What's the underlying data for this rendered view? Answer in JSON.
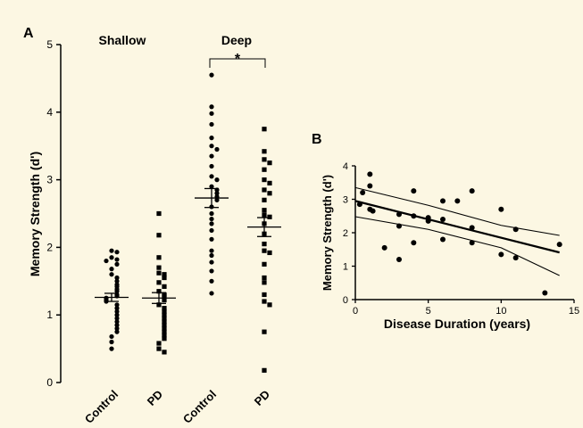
{
  "colors": {
    "background": "#fcf7e3",
    "ink": "#000000"
  },
  "panels": {
    "a": "A",
    "b": "B"
  },
  "chart_data": [
    {
      "type": "scatter",
      "title": "",
      "ylabel": "Memory Strength (d')",
      "ylim": [
        0,
        5
      ],
      "yticks": [
        "0",
        "1",
        "2",
        "3",
        "4",
        "5"
      ],
      "groups": [
        "Shallow",
        "Deep"
      ],
      "categories": [
        "Control",
        "PD",
        "Control",
        "PD"
      ],
      "significance": "*",
      "series": [
        {
          "marker": "circle",
          "mean": 1.26,
          "sem": 0.06,
          "values": [
            1.95,
            1.93,
            1.85,
            1.82,
            1.8,
            1.75,
            1.68,
            1.6,
            1.55,
            1.5,
            1.45,
            1.42,
            1.38,
            1.35,
            1.3,
            1.28,
            1.25,
            1.22,
            1.2,
            1.15,
            1.1,
            1.05,
            1.0,
            0.95,
            0.9,
            0.85,
            0.8,
            0.75,
            0.68,
            0.6,
            0.5
          ]
        },
        {
          "marker": "square",
          "mean": 1.25,
          "sem": 0.08,
          "values": [
            2.5,
            2.18,
            1.85,
            1.7,
            1.62,
            1.6,
            1.55,
            1.48,
            1.42,
            1.35,
            1.3,
            1.28,
            1.22,
            1.15,
            1.1,
            1.05,
            1.0,
            0.95,
            0.9,
            0.85,
            0.8,
            0.75,
            0.7,
            0.65,
            0.58,
            0.5,
            0.45
          ]
        },
        {
          "marker": "circle",
          "mean": 2.73,
          "sem": 0.14,
          "values": [
            4.55,
            4.08,
            3.98,
            3.82,
            3.62,
            3.5,
            3.45,
            3.35,
            3.2,
            3.05,
            3.0,
            2.9,
            2.85,
            2.8,
            2.75,
            2.7,
            2.6,
            2.5,
            2.42,
            2.35,
            2.25,
            2.12,
            1.95,
            1.88,
            1.78,
            1.65,
            1.5,
            1.32
          ]
        },
        {
          "marker": "square",
          "mean": 2.3,
          "sem": 0.14,
          "values": [
            3.75,
            3.42,
            3.3,
            3.25,
            3.15,
            3.0,
            2.95,
            2.85,
            2.8,
            2.7,
            2.55,
            2.48,
            2.45,
            2.35,
            2.2,
            2.05,
            1.95,
            1.92,
            1.75,
            1.55,
            1.48,
            1.3,
            1.2,
            1.15,
            0.75,
            0.18
          ]
        }
      ]
    },
    {
      "type": "scatter",
      "title": "",
      "xlabel": "Disease Duration (years)",
      "ylabel": "Memory Strength (d')",
      "xlim": [
        0,
        15
      ],
      "ylim": [
        0,
        4
      ],
      "xticks": [
        "0",
        "5",
        "10",
        "15"
      ],
      "yticks": [
        "0",
        "1",
        "2",
        "3",
        "4"
      ],
      "fit": {
        "intercept": 2.95,
        "slope": -0.11
      },
      "ci_upper": [
        [
          0,
          3.35
        ],
        [
          5,
          2.82
        ],
        [
          10,
          2.22
        ],
        [
          14,
          1.92
        ]
      ],
      "ci_lower": [
        [
          0,
          2.48
        ],
        [
          5,
          2.1
        ],
        [
          10,
          1.55
        ],
        [
          14,
          0.72
        ]
      ],
      "points": [
        [
          0.3,
          2.85
        ],
        [
          0.5,
          3.2
        ],
        [
          1.0,
          3.75
        ],
        [
          1.0,
          3.4
        ],
        [
          1.0,
          2.7
        ],
        [
          1.2,
          2.65
        ],
        [
          2.0,
          1.55
        ],
        [
          3.0,
          2.55
        ],
        [
          3.0,
          2.2
        ],
        [
          3.0,
          1.2
        ],
        [
          4.0,
          3.25
        ],
        [
          4.0,
          2.5
        ],
        [
          4.0,
          1.7
        ],
        [
          5.0,
          2.45
        ],
        [
          5.0,
          2.35
        ],
        [
          6.0,
          2.95
        ],
        [
          6.0,
          2.4
        ],
        [
          6.0,
          1.8
        ],
        [
          7.0,
          2.95
        ],
        [
          8.0,
          3.25
        ],
        [
          8.0,
          2.15
        ],
        [
          8.0,
          1.7
        ],
        [
          10.0,
          2.7
        ],
        [
          10.0,
          1.35
        ],
        [
          11.0,
          2.1
        ],
        [
          11.0,
          1.25
        ],
        [
          13.0,
          0.2
        ],
        [
          14.0,
          1.65
        ]
      ]
    }
  ]
}
